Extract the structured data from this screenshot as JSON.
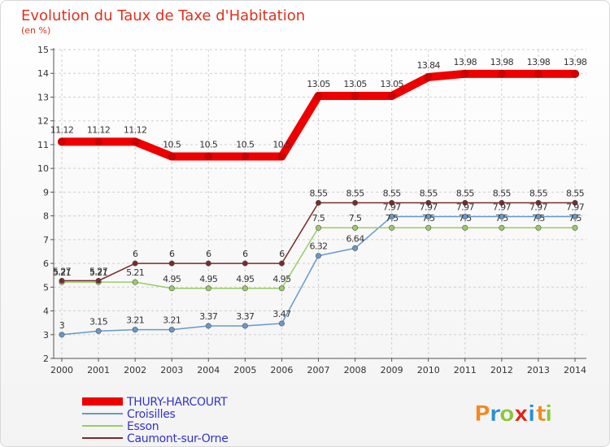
{
  "chart_data": {
    "type": "line",
    "title": "Evolution du Taux de Taxe d'Habitation",
    "subtitle": "(en %)",
    "x": [
      "2000",
      "2001",
      "2002",
      "2003",
      "2004",
      "2005",
      "2006",
      "2007",
      "2008",
      "2009",
      "2010",
      "2011",
      "2012",
      "2013",
      "2014"
    ],
    "ylim": [
      2,
      15
    ],
    "yticks": [
      2,
      3,
      4,
      5,
      6,
      7,
      8,
      9,
      10,
      11,
      12,
      13,
      14,
      15
    ],
    "grid": true,
    "legend_position": "bottom-left",
    "series": [
      {
        "name": "THURY-HARCOURT",
        "color": "#ee0000",
        "values": [
          11.12,
          11.12,
          11.12,
          10.5,
          10.5,
          10.5,
          10.5,
          13.05,
          13.05,
          13.05,
          13.84,
          13.98,
          13.98,
          13.98,
          13.98
        ],
        "labels": [
          "11.12",
          "11.12",
          "11.12",
          "10.5",
          "10.5",
          "10.5",
          "10.5",
          "13.05",
          "13.05",
          "13.05",
          "13.84",
          "13.98",
          "13.98",
          "13.98",
          "13.98"
        ]
      },
      {
        "name": "Croisilles",
        "color": "#6699cc",
        "values": [
          3,
          3.15,
          3.21,
          3.21,
          3.37,
          3.37,
          3.47,
          6.32,
          6.64,
          7.97,
          7.97,
          7.97,
          7.97,
          7.97,
          7.97
        ],
        "labels": [
          "3",
          "3.15",
          "3.21",
          "3.21",
          "3.37",
          "3.37",
          "3.47",
          "6.32",
          "6.64",
          "7.97",
          "7.97",
          "7.97",
          "7.97",
          "7.97",
          "7.97"
        ]
      },
      {
        "name": "Esson",
        "color": "#99cc66",
        "values": [
          5.21,
          5.21,
          5.21,
          4.95,
          4.95,
          4.95,
          4.95,
          7.5,
          7.5,
          7.5,
          7.5,
          7.5,
          7.5,
          7.5,
          7.5
        ],
        "labels": [
          "5.21",
          "5.21",
          "5.21",
          "4.95",
          "4.95",
          "4.95",
          "4.95",
          "7.5",
          "7.5",
          "7.5",
          "7.5",
          "7.5",
          "7.5",
          "7.5",
          "7.5"
        ]
      },
      {
        "name": "Caumont-sur-Orne",
        "color": "#7a2a2a",
        "values": [
          5.27,
          5.27,
          6,
          6,
          6,
          6,
          6,
          8.55,
          8.55,
          8.55,
          8.55,
          8.55,
          8.55,
          8.55,
          8.55
        ],
        "labels": [
          "5.27",
          "5.27",
          "6",
          "6",
          "6",
          "6",
          "6",
          "8.55",
          "8.55",
          "8.55",
          "8.55",
          "8.55",
          "8.55",
          "8.55",
          "8.55"
        ]
      }
    ]
  },
  "logo": {
    "text": "Proxiti",
    "letters": [
      "P",
      "r",
      "o",
      "x",
      "i",
      "t",
      "i"
    ],
    "colors": [
      "#f08a24",
      "#2a8fd6",
      "#8cc63f",
      "#e2231a",
      "#2a8fd6",
      "#f08a24",
      "#8cc63f"
    ]
  }
}
